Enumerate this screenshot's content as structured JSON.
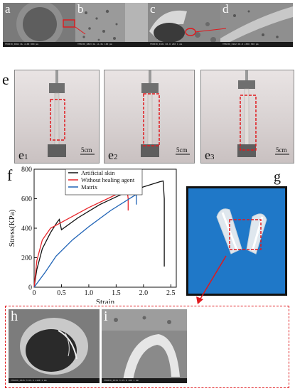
{
  "panel_a": {
    "label": "a",
    "bar": "TM3030_0862    NL   x100   800 μm"
  },
  "panel_b": {
    "label": "b",
    "bar": "TM3030_0863    NL   x1.0k  100 μm"
  },
  "panel_c": {
    "label": "c",
    "bar": "TM3030_0101    D6.8  x80   1 mm"
  },
  "panel_d": {
    "label": "d",
    "bar": "TM3030_0102    D6.8  x300  300 μm"
  },
  "panel_e": {
    "label": "e",
    "frames": [
      {
        "label": "e",
        "sub": "1",
        "scale": "5cm"
      },
      {
        "label": "e",
        "sub": "2",
        "scale": "5cm"
      },
      {
        "label": "e",
        "sub": "3",
        "scale": "5cm"
      }
    ]
  },
  "panel_f": {
    "label": "f"
  },
  "panel_g": {
    "label": "g"
  },
  "panel_h": {
    "label": "h",
    "bar": "TM3030_0325    H   D5.8  x100   1 mm"
  },
  "panel_i": {
    "label": "i",
    "bar": "TM3030_0334    H   D5.8  x80    1 mm"
  },
  "colors": {
    "artificial": "#111111",
    "no_healing": "#e8262b",
    "matrix": "#1f63b6",
    "dashed": "#e0191d",
    "blue_bg": "#1f78c8"
  },
  "chart_data": {
    "type": "line",
    "xlabel": "Strain",
    "ylabel": "Stress(KPa)",
    "xlim": [
      0,
      2.6
    ],
    "ylim": [
      0,
      800
    ],
    "xticks": [
      "0",
      "0.5",
      "1.0",
      "1.5",
      "2.0",
      "2.5"
    ],
    "yticks": [
      "0",
      "200",
      "400",
      "600",
      "800"
    ],
    "legend_position": "top-center",
    "series": [
      {
        "name": "Artificial skin",
        "color": "#111111",
        "x": [
          0,
          0.05,
          0.15,
          0.3,
          0.42,
          0.46,
          0.5,
          0.8,
          1.2,
          1.6,
          2.0,
          2.3,
          2.36,
          2.38,
          2.38
        ],
        "y": [
          0,
          120,
          260,
          370,
          440,
          460,
          390,
          470,
          560,
          630,
          680,
          715,
          720,
          600,
          140
        ]
      },
      {
        "name": "Without healing agent",
        "color": "#e8262b",
        "x": [
          0,
          0.05,
          0.15,
          0.3,
          0.6,
          1.0,
          1.4,
          1.62,
          1.7,
          1.72,
          1.72
        ],
        "y": [
          0,
          180,
          320,
          400,
          460,
          540,
          610,
          650,
          660,
          600,
          520
        ]
      },
      {
        "name": "Matrix",
        "color": "#1f63b6",
        "x": [
          0,
          0.2,
          0.4,
          0.7,
          1.0,
          1.4,
          1.7,
          1.85,
          1.87,
          1.87
        ],
        "y": [
          0,
          100,
          210,
          320,
          410,
          520,
          590,
          625,
          630,
          560
        ]
      }
    ]
  }
}
